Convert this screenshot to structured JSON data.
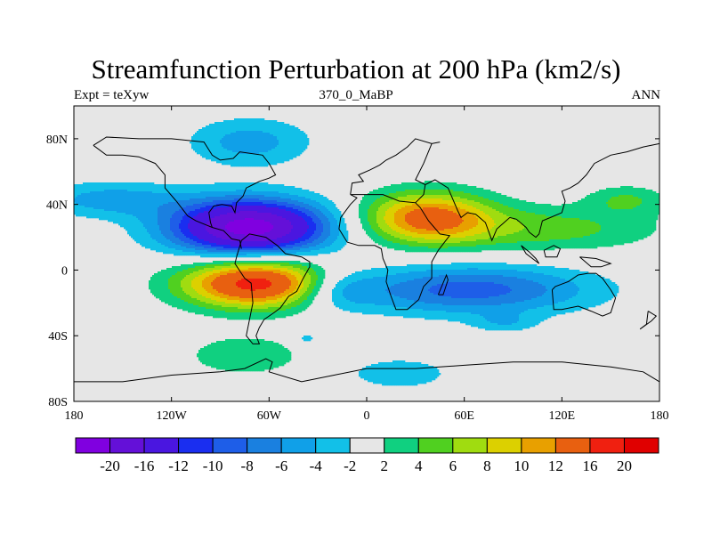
{
  "chart_data": {
    "type": "heatmap",
    "title": "Streamfunction Perturbation at 200 hPa (km2/s)",
    "left_label": "Expt = teXyw",
    "center_label": "370_0_MaBP",
    "right_label": "ANN",
    "x_ticks": [
      "180",
      "120W",
      "60W",
      "0",
      "60E",
      "120E",
      "180"
    ],
    "y_ticks": [
      "80N",
      "40N",
      "0",
      "40S",
      "80S"
    ],
    "xlim": [
      -180,
      180
    ],
    "ylim": [
      -90,
      90
    ],
    "colorbar": {
      "levels": [
        -20,
        -16,
        -12,
        -10,
        -8,
        -6,
        -4,
        -2,
        2,
        4,
        6,
        8,
        10,
        12,
        16,
        20
      ],
      "tick_labels": [
        "-20",
        "-16",
        "-12",
        "-10",
        "-8",
        "-6",
        "-4",
        "-2",
        "2",
        "4",
        "6",
        "8",
        "10",
        "12",
        "16",
        "20"
      ],
      "colors": [
        "#8000e0",
        "#6410d8",
        "#4a16e0",
        "#1a2ef0",
        "#1e5ee8",
        "#1a80e0",
        "#10a0e8",
        "#12c0e8",
        "#e6e6e6",
        "#10d080",
        "#50d020",
        "#a0dc10",
        "#dcd000",
        "#e8a000",
        "#e86010",
        "#f02010",
        "#e00000"
      ]
    },
    "features": [
      {
        "lon": -72,
        "lat": 16,
        "lon_radius": 48,
        "lat_radius": 17,
        "peak": -22
      },
      {
        "lon": -158,
        "lat": 33,
        "lon_radius": 45,
        "lat_radius": 11,
        "peak": -5
      },
      {
        "lon": -72,
        "lat": 68,
        "lon_radius": 38,
        "lat_radius": 15,
        "peak": -5
      },
      {
        "lon": -68,
        "lat": -18,
        "lon_radius": 45,
        "lat_radius": 15,
        "peak": 18
      },
      {
        "lon": 37,
        "lat": 22,
        "lon_radius": 40,
        "lat_radius": 16,
        "peak": 13
      },
      {
        "lon": 110,
        "lat": 15,
        "lon_radius": 70,
        "lat_radius": 14,
        "peak": 5
      },
      {
        "lon": 160,
        "lat": 33,
        "lon_radius": 25,
        "lat_radius": 9,
        "peak": 4
      },
      {
        "lon": 63,
        "lat": -22,
        "lon_radius": 75,
        "lat_radius": 15,
        "peak": -9
      },
      {
        "lon": -18,
        "lat": -22,
        "lon_radius": 24,
        "lat_radius": 12,
        "peak": -5
      },
      {
        "lon": 85,
        "lat": -42,
        "lon_radius": 20,
        "lat_radius": 6,
        "peak": -3
      },
      {
        "lon": -75,
        "lat": -62,
        "lon_radius": 35,
        "lat_radius": 12,
        "peak": 4
      },
      {
        "lon": 20,
        "lat": -73,
        "lon_radius": 30,
        "lat_radius": 9,
        "peak": -4
      },
      {
        "lon": -37,
        "lat": -52,
        "lon_radius": 8,
        "lat_radius": 5,
        "peak": -3
      }
    ]
  }
}
